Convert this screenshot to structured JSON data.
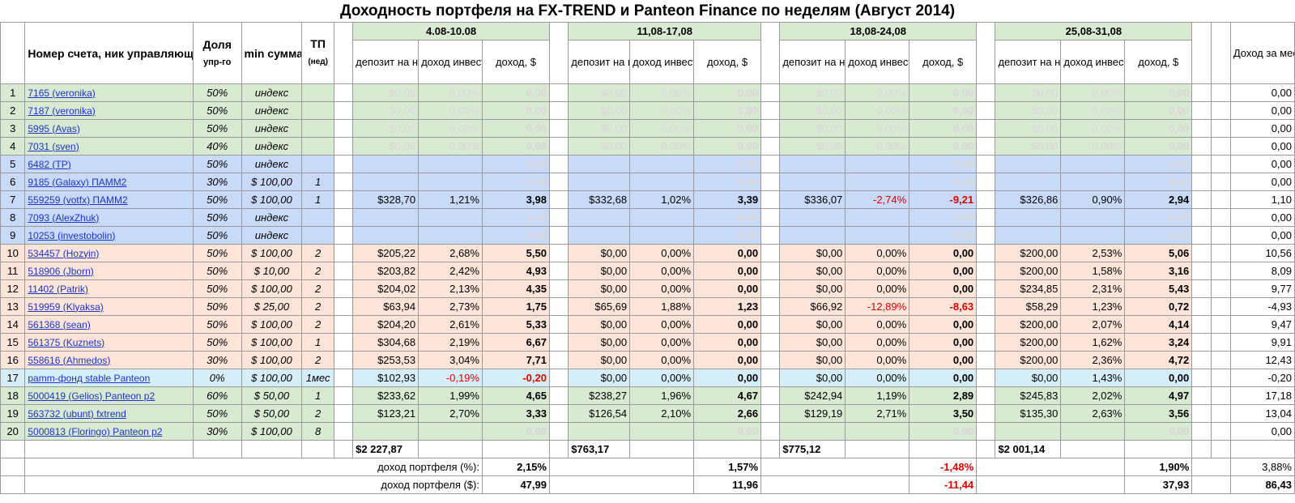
{
  "title": "Доходность портфеля на FX-TREND и Panteon Finance по неделям (Август 2014)",
  "headers": {
    "account": "Номер счета, ник управляющего и ссылка на ПАММ-счет",
    "share": "Доля",
    "share_sub": "упр-го",
    "min": "min сумма входа",
    "tp": "ТП",
    "tp_sub": "(нед)",
    "deposit": "депозит на начало периода",
    "investor": "доход инвестора, %",
    "income": "доход, $",
    "month": "Доход за месяц, $"
  },
  "weeks": [
    "4.08-10.08",
    "11,08-17,08",
    "18,08-24,08",
    "25,08-31,08"
  ],
  "rows": [
    {
      "n": "1",
      "acc": "7165 (veronika)",
      "share": "50%",
      "min": "индекс",
      "tp": "",
      "color": "g",
      "w": [
        [
          "$0,00",
          "0,00%",
          "0,00",
          1
        ],
        [
          "$0,00",
          "0,00%",
          "0,00",
          1
        ],
        [
          "$0,00",
          "0,00%",
          "0,00",
          1
        ],
        [
          "$0,00",
          "0,00%",
          "0,00",
          1
        ]
      ],
      "month": "0,00"
    },
    {
      "n": "2",
      "acc": "7187 (veronika)",
      "share": "50%",
      "min": "индекс",
      "tp": "",
      "color": "g",
      "w": [
        [
          "$0,00",
          "0,00%",
          "0,00",
          1
        ],
        [
          "$0,00",
          "0,00%",
          "0,00",
          1
        ],
        [
          "$0,00",
          "0,00%",
          "0,00",
          1
        ],
        [
          "$0,00",
          "0,00%",
          "0,00",
          1
        ]
      ],
      "month": "0,00"
    },
    {
      "n": "3",
      "acc": "5995 (Avas)",
      "share": "50%",
      "min": "индекс",
      "tp": "",
      "color": "g",
      "w": [
        [
          "$0,00",
          "0,00%",
          "0,00",
          1
        ],
        [
          "$0,00",
          "0,00%",
          "0,00",
          1
        ],
        [
          "$0,00",
          "0,00%",
          "0,00",
          1
        ],
        [
          "$0,00",
          "0,00%",
          "0,00",
          1
        ]
      ],
      "month": "0,00"
    },
    {
      "n": "4",
      "acc": "7031 (sven)",
      "share": "40%",
      "min": "индекс",
      "tp": "",
      "color": "g",
      "w": [
        [
          "$0,00",
          "0,00%",
          "0,00",
          1
        ],
        [
          "$0,00",
          "0,00%",
          "0,00",
          1
        ],
        [
          "$0,00",
          "0,00%",
          "0,00",
          1
        ],
        [
          "$0,00",
          "0,00%",
          "0,00",
          1
        ]
      ],
      "month": "0,00"
    },
    {
      "n": "5",
      "acc": "6482 (TP)",
      "share": "50%",
      "min": "индекс",
      "tp": "",
      "color": "bl",
      "w": [
        [
          "",
          "",
          "0,00",
          1
        ],
        [
          "",
          "",
          "0,00",
          1
        ],
        [
          "",
          "",
          "0,00",
          1
        ],
        [
          "",
          "",
          "0,00",
          1
        ]
      ],
      "month": "0,00"
    },
    {
      "n": "6",
      "acc": "9185 (Galaxy) ПАММ2",
      "share": "30%",
      "min": "$    100,00",
      "tp": "1",
      "color": "bl",
      "w": [
        [
          "",
          "",
          "0,00",
          1
        ],
        [
          "",
          "",
          "0,00",
          1
        ],
        [
          "",
          "",
          "0,00",
          1
        ],
        [
          "",
          "",
          "0,00",
          1
        ]
      ],
      "month": "0,00"
    },
    {
      "n": "7",
      "acc": "559259 (votfx) ПАММ2",
      "share": "50%",
      "min": "$    100,00",
      "tp": "1",
      "color": "bl",
      "w": [
        [
          "$328,70",
          "1,21%",
          "3,98",
          0
        ],
        [
          "$332,68",
          "1,02%",
          "3,39",
          0
        ],
        [
          "$336,07",
          "-2,74%",
          "-9,21",
          0
        ],
        [
          "$326,86",
          "0,90%",
          "2,94",
          0
        ]
      ],
      "month": "1,10"
    },
    {
      "n": "8",
      "acc": "7093 (AlexZhuk)",
      "share": "50%",
      "min": "индекс",
      "tp": "",
      "color": "bl",
      "w": [
        [
          "",
          "",
          "0,00",
          1
        ],
        [
          "",
          "",
          "0,00",
          1
        ],
        [
          "",
          "",
          "0,00",
          1
        ],
        [
          "",
          "",
          "0,00",
          1
        ]
      ],
      "month": "0,00"
    },
    {
      "n": "9",
      "acc": "10253 (investobolin)",
      "share": "50%",
      "min": "индекс",
      "tp": "",
      "color": "bl",
      "w": [
        [
          "",
          "",
          "0,00",
          1
        ],
        [
          "",
          "",
          "0,00",
          1
        ],
        [
          "",
          "",
          "0,00",
          1
        ],
        [
          "",
          "",
          "0,00",
          1
        ]
      ],
      "month": "0,00"
    },
    {
      "n": "10",
      "acc": "534457 (Hozyin)",
      "share": "50%",
      "min": "$    100,00",
      "tp": "2",
      "color": "pk",
      "w": [
        [
          "$205,22",
          "2,68%",
          "5,50",
          0
        ],
        [
          "$0,00",
          "0,00%",
          "0,00",
          0
        ],
        [
          "$0,00",
          "0,00%",
          "0,00",
          0
        ],
        [
          "$200,00",
          "2,53%",
          "5,06",
          0
        ]
      ],
      "month": "10,56"
    },
    {
      "n": "11",
      "acc": "518906 (Jborn)",
      "share": "50%",
      "min": "$      10,00",
      "tp": "2",
      "color": "pk",
      "w": [
        [
          "$203,82",
          "2,42%",
          "4,93",
          0
        ],
        [
          "$0,00",
          "0,00%",
          "0,00",
          0
        ],
        [
          "$0,00",
          "0,00%",
          "0,00",
          0
        ],
        [
          "$200,00",
          "1,58%",
          "3,16",
          0
        ]
      ],
      "month": "8,09"
    },
    {
      "n": "12",
      "acc": "11402 (Patrik)",
      "share": "50%",
      "min": "$    100,00",
      "tp": "2",
      "color": "pk",
      "w": [
        [
          "$204,02",
          "2,13%",
          "4,35",
          0
        ],
        [
          "$0,00",
          "0,00%",
          "0,00",
          0
        ],
        [
          "$0,00",
          "0,00%",
          "0,00",
          0
        ],
        [
          "$234,85",
          "2,31%",
          "5,43",
          0
        ]
      ],
      "month": "9,77"
    },
    {
      "n": "13",
      "acc": "519959 (Klyaksa)",
      "share": "50%",
      "min": "$      25,00",
      "tp": "2",
      "color": "pk",
      "w": [
        [
          "$63,94",
          "2,73%",
          "1,75",
          0
        ],
        [
          "$65,69",
          "1,88%",
          "1,23",
          0
        ],
        [
          "$66,92",
          "-12,89%",
          "-8,63",
          0
        ],
        [
          "$58,29",
          "1,23%",
          "0,72",
          0
        ]
      ],
      "month": "-4,93"
    },
    {
      "n": "14",
      "acc": "561368 (sean)",
      "share": "50%",
      "min": "$    100,00",
      "tp": "2",
      "color": "pk",
      "w": [
        [
          "$204,20",
          "2,61%",
          "5,33",
          0
        ],
        [
          "$0,00",
          "0,00%",
          "0,00",
          0
        ],
        [
          "$0,00",
          "0,00%",
          "0,00",
          0
        ],
        [
          "$200,00",
          "2,07%",
          "4,14",
          0
        ]
      ],
      "month": "9,47"
    },
    {
      "n": "15",
      "acc": "561375 (Kuznets)",
      "share": "50%",
      "min": "$    100,00",
      "tp": "1",
      "color": "pk",
      "w": [
        [
          "$304,68",
          "2,19%",
          "6,67",
          0
        ],
        [
          "$0,00",
          "0,00%",
          "0,00",
          0
        ],
        [
          "$0,00",
          "0,00%",
          "0,00",
          0
        ],
        [
          "$200,00",
          "1,62%",
          "3,24",
          0
        ]
      ],
      "month": "9,91"
    },
    {
      "n": "16",
      "acc": "558616 (Ahmedos)",
      "share": "30%",
      "min": "$    100,00",
      "tp": "2",
      "color": "pk",
      "w": [
        [
          "$253,53",
          "3,04%",
          "7,71",
          0
        ],
        [
          "$0,00",
          "0,00%",
          "0,00",
          0
        ],
        [
          "$0,00",
          "0,00%",
          "0,00",
          0
        ],
        [
          "$200,00",
          "2,36%",
          "4,72",
          0
        ]
      ],
      "month": "12,43"
    },
    {
      "n": "17",
      "acc": "pamm-фонд stable     Panteon",
      "share": "0%",
      "min": "$    100,00",
      "tp": "1мес",
      "color": "lb",
      "w": [
        [
          "$102,93",
          "-0,19%",
          "-0,20",
          0
        ],
        [
          "$0,00",
          "0,00%",
          "0,00",
          0
        ],
        [
          "$0,00",
          "0,00%",
          "0,00",
          0
        ],
        [
          "$0,00",
          "1,43%",
          "0,00",
          0
        ]
      ],
      "month": "-0,20"
    },
    {
      "n": "18",
      "acc": "5000419 (Gelios)        Panteon p2",
      "share": "60%",
      "min": "$      50,00",
      "tp": "1",
      "color": "g",
      "w": [
        [
          "$233,62",
          "1,99%",
          "4,65",
          0
        ],
        [
          "$238,27",
          "1,96%",
          "4,67",
          0
        ],
        [
          "$242,94",
          "1,19%",
          "2,89",
          0
        ],
        [
          "$245,83",
          "2,02%",
          "4,97",
          0
        ]
      ],
      "month": "17,18"
    },
    {
      "n": "19",
      "acc": "563732 (ubunt)      fxtrend",
      "share": "50%",
      "min": "$      50,00",
      "tp": "2",
      "color": "g",
      "w": [
        [
          "$123,21",
          "2,70%",
          "3,33",
          0
        ],
        [
          "$126,54",
          "2,10%",
          "2,66",
          0
        ],
        [
          "$129,19",
          "2,71%",
          "3,50",
          0
        ],
        [
          "$135,30",
          "2,63%",
          "3,56",
          0
        ]
      ],
      "month": "13,04"
    },
    {
      "n": "20",
      "acc": "5000813 (Floringo)     Panteon p2",
      "share": "30%",
      "min": "$    100,00",
      "tp": "8",
      "color": "g",
      "w": [
        [
          "",
          "",
          "0,00",
          1
        ],
        [
          "",
          "",
          "0,00",
          1
        ],
        [
          "",
          "",
          "0,00",
          1
        ],
        [
          "",
          "",
          "0,00",
          1
        ]
      ],
      "month": "0,00"
    }
  ],
  "totals": {
    "deposits": [
      "$2 227,87",
      "$763,17",
      "$775,12",
      "$2 001,14"
    ],
    "pct_label": "доход портфеля (%):",
    "pct": [
      "2,15%",
      "1,57%",
      "-1,48%",
      "1,90%"
    ],
    "pct_month": "3,88%",
    "usd_label": "доход портфеля ($):",
    "usd": [
      "47,99",
      "11,96",
      "-11,44",
      "37,93"
    ],
    "usd_month": "86,43"
  },
  "colors": {
    "green": "#d9ead3",
    "blue": "#c9daf8",
    "pink": "#fce5d8",
    "lightblue": "#d6eef8",
    "negative": "#e00000",
    "link": "#1c35c8"
  }
}
